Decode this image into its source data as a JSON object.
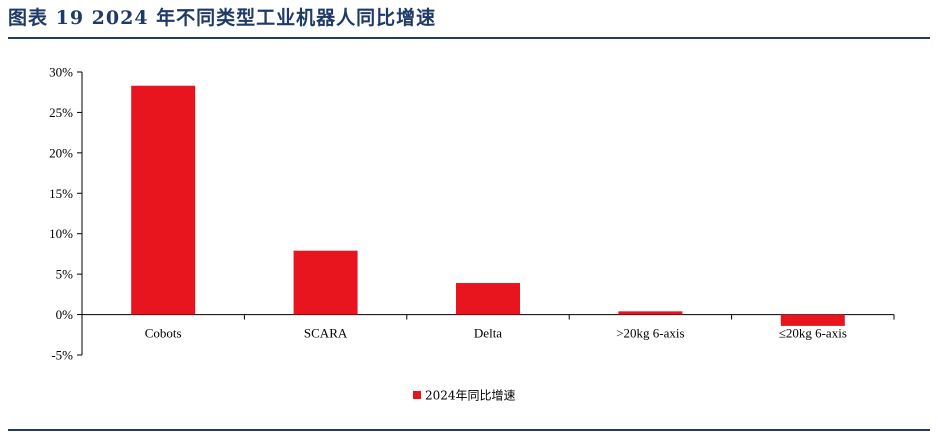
{
  "header": {
    "figure_title": "图表 19   2024 年不同类型工业机器人同比增速"
  },
  "colors": {
    "bar": "#e8141e",
    "accent": "#1f3a68"
  },
  "chart_data": {
    "type": "bar",
    "categories": [
      "Cobots",
      "SCARA",
      "Delta",
      ">20kg 6-axis",
      "≤20kg 6-axis"
    ],
    "series": [
      {
        "name": "2024年同比增速",
        "values": [
          28.3,
          7.9,
          3.9,
          0.4,
          -1.4
        ]
      }
    ],
    "ylim": [
      -5,
      30
    ],
    "yticks": [
      30,
      25,
      20,
      15,
      10,
      5,
      0,
      -5
    ],
    "ytick_labels": [
      "30%",
      "25%",
      "20%",
      "15%",
      "10%",
      "5%",
      "0%",
      "-5%"
    ],
    "legend": "bottom-center",
    "grid": false
  }
}
